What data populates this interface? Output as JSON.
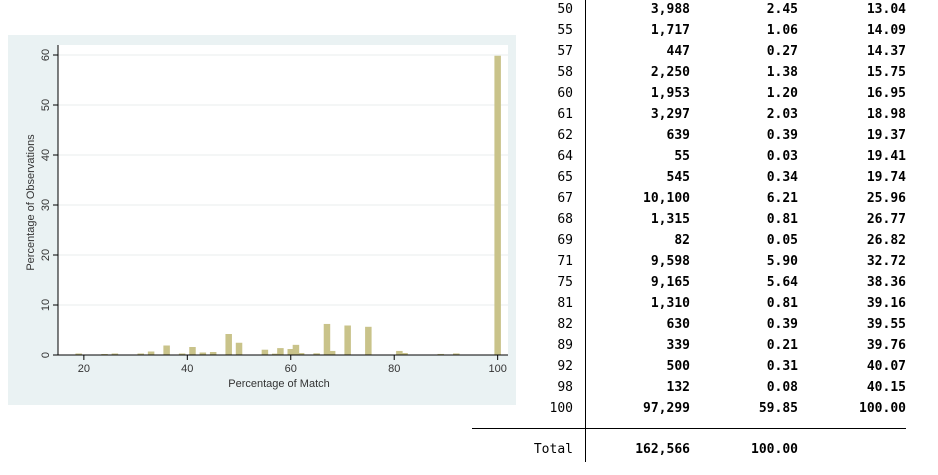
{
  "chart_data": {
    "type": "bar",
    "xlabel": "Percentage of Match",
    "ylabel": "Percentage of Observations",
    "xlim": [
      15,
      102
    ],
    "ylim": [
      0,
      61
    ],
    "x_ticks": [
      20,
      40,
      60,
      80,
      100
    ],
    "y_ticks": [
      0,
      10,
      20,
      30,
      40,
      50,
      60
    ],
    "bar_color": "#c9c38a",
    "x": [
      19,
      24,
      26,
      31,
      33,
      36,
      39,
      41,
      43,
      45,
      48,
      50,
      55,
      57,
      58,
      60,
      61,
      62,
      64,
      65,
      67,
      68,
      69,
      71,
      75,
      81,
      82,
      89,
      92,
      98,
      100
    ],
    "values": [
      0.3,
      0.2,
      0.3,
      0.3,
      0.7,
      1.9,
      0.3,
      1.6,
      0.5,
      0.6,
      4.2,
      2.45,
      1.06,
      0.27,
      1.38,
      1.2,
      2.03,
      0.39,
      0.03,
      0.34,
      6.21,
      0.81,
      0.05,
      5.9,
      5.64,
      0.81,
      0.39,
      0.21,
      0.31,
      0.08,
      59.85
    ]
  },
  "table": {
    "rows": [
      {
        "value": "50",
        "freq": "3,988",
        "percent": "2.45",
        "cum": "13.04"
      },
      {
        "value": "55",
        "freq": "1,717",
        "percent": "1.06",
        "cum": "14.09"
      },
      {
        "value": "57",
        "freq": "447",
        "percent": "0.27",
        "cum": "14.37"
      },
      {
        "value": "58",
        "freq": "2,250",
        "percent": "1.38",
        "cum": "15.75"
      },
      {
        "value": "60",
        "freq": "1,953",
        "percent": "1.20",
        "cum": "16.95"
      },
      {
        "value": "61",
        "freq": "3,297",
        "percent": "2.03",
        "cum": "18.98"
      },
      {
        "value": "62",
        "freq": "639",
        "percent": "0.39",
        "cum": "19.37"
      },
      {
        "value": "64",
        "freq": "55",
        "percent": "0.03",
        "cum": "19.41"
      },
      {
        "value": "65",
        "freq": "545",
        "percent": "0.34",
        "cum": "19.74"
      },
      {
        "value": "67",
        "freq": "10,100",
        "percent": "6.21",
        "cum": "25.96"
      },
      {
        "value": "68",
        "freq": "1,315",
        "percent": "0.81",
        "cum": "26.77"
      },
      {
        "value": "69",
        "freq": "82",
        "percent": "0.05",
        "cum": "26.82"
      },
      {
        "value": "71",
        "freq": "9,598",
        "percent": "5.90",
        "cum": "32.72"
      },
      {
        "value": "75",
        "freq": "9,165",
        "percent": "5.64",
        "cum": "38.36"
      },
      {
        "value": "81",
        "freq": "1,310",
        "percent": "0.81",
        "cum": "39.16"
      },
      {
        "value": "82",
        "freq": "630",
        "percent": "0.39",
        "cum": "39.55"
      },
      {
        "value": "89",
        "freq": "339",
        "percent": "0.21",
        "cum": "39.76"
      },
      {
        "value": "92",
        "freq": "500",
        "percent": "0.31",
        "cum": "40.07"
      },
      {
        "value": "98",
        "freq": "132",
        "percent": "0.08",
        "cum": "40.15"
      },
      {
        "value": "100",
        "freq": "97,299",
        "percent": "59.85",
        "cum": "100.00"
      }
    ],
    "total": {
      "label": "Total",
      "freq": "162,566",
      "percent": "100.00"
    }
  }
}
